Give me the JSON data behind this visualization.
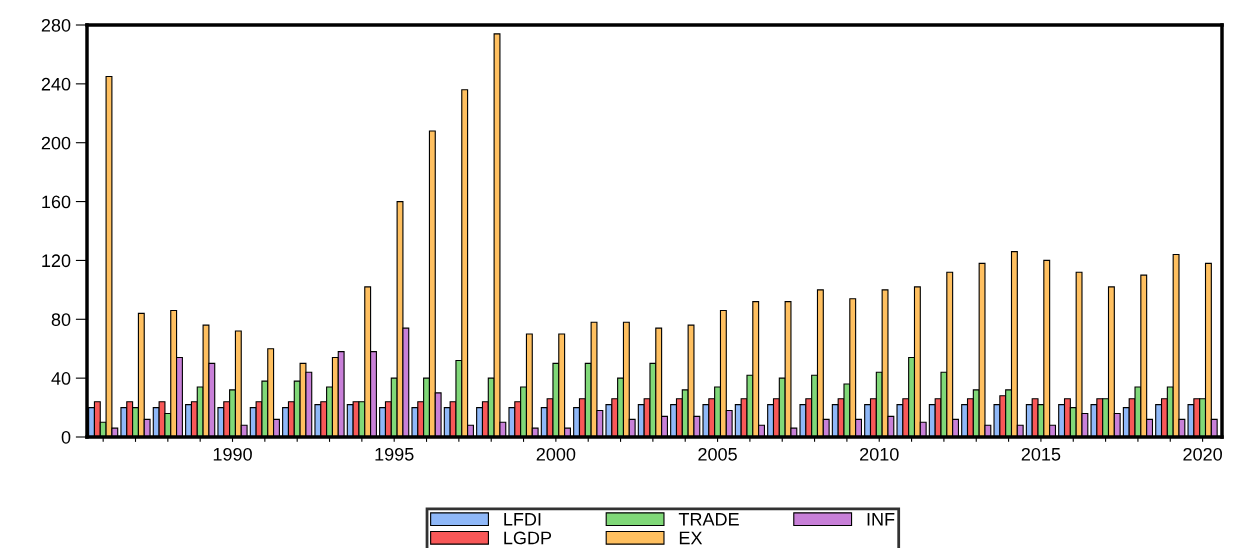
{
  "chart_data": {
    "type": "bar",
    "x": [
      1986,
      1987,
      1988,
      1989,
      1990,
      1991,
      1992,
      1993,
      1994,
      1995,
      1996,
      1997,
      1998,
      1999,
      2000,
      2001,
      2002,
      2003,
      2004,
      2005,
      2006,
      2007,
      2008,
      2009,
      2010,
      2011,
      2012,
      2013,
      2014,
      2015,
      2016,
      2017,
      2018,
      2019,
      2020
    ],
    "series": [
      {
        "name": "LFDI",
        "color": "#8fb8f8",
        "values": [
          20,
          20,
          20,
          22,
          20,
          20,
          20,
          22,
          22,
          20,
          20,
          20,
          20,
          20,
          20,
          20,
          22,
          22,
          22,
          22,
          22,
          22,
          22,
          22,
          22,
          22,
          22,
          22,
          22,
          22,
          22,
          22,
          20,
          22,
          22
        ]
      },
      {
        "name": "LGDP",
        "color": "#f85858",
        "values": [
          24,
          24,
          24,
          24,
          24,
          24,
          24,
          24,
          24,
          24,
          24,
          24,
          24,
          24,
          26,
          26,
          26,
          26,
          26,
          26,
          26,
          26,
          26,
          26,
          26,
          26,
          26,
          26,
          28,
          26,
          26,
          26,
          26,
          26,
          26
        ]
      },
      {
        "name": "TRADE",
        "color": "#80d878",
        "values": [
          10,
          20,
          16,
          34,
          32,
          38,
          38,
          34,
          24,
          40,
          40,
          52,
          40,
          34,
          50,
          50,
          40,
          50,
          32,
          34,
          42,
          40,
          42,
          36,
          44,
          54,
          44,
          32,
          32,
          22,
          20,
          26,
          34,
          34,
          26
        ]
      },
      {
        "name": "EX",
        "color": "#ffc060",
        "values": [
          245,
          84,
          86,
          76,
          72,
          60,
          50,
          54,
          102,
          160,
          208,
          236,
          274,
          70,
          70,
          78,
          78,
          74,
          76,
          86,
          92,
          92,
          100,
          94,
          100,
          102,
          112,
          118,
          126,
          120,
          112,
          102,
          110,
          124,
          118
        ]
      },
      {
        "name": "INF",
        "color": "#c880d8",
        "values": [
          6,
          12,
          54,
          50,
          8,
          12,
          44,
          58,
          58,
          74,
          30,
          8,
          10,
          6,
          6,
          18,
          12,
          14,
          14,
          18,
          8,
          6,
          12,
          12,
          14,
          10,
          12,
          8,
          8,
          8,
          16,
          16,
          12,
          12,
          12
        ]
      }
    ],
    "xlim": [
      1985.5,
      2020.6
    ],
    "xticks": [
      {
        "value": 1986,
        "label": null
      },
      {
        "value": 1987,
        "label": null
      },
      {
        "value": 1988,
        "label": null
      },
      {
        "value": 1989,
        "label": null
      },
      1990,
      {
        "value": 1991,
        "label": null
      },
      {
        "value": 1992,
        "label": null
      },
      {
        "value": 1993,
        "label": null
      },
      {
        "value": 1994,
        "label": null
      },
      1995,
      {
        "value": 1996,
        "label": null
      },
      {
        "value": 1997,
        "label": null
      },
      {
        "value": 1998,
        "label": null
      },
      {
        "value": 1999,
        "label": null
      },
      2000,
      {
        "value": 2001,
        "label": null
      },
      {
        "value": 2002,
        "label": null
      },
      {
        "value": 2003,
        "label": null
      },
      {
        "value": 2004,
        "label": null
      },
      2005,
      {
        "value": 2006,
        "label": null
      },
      {
        "value": 2007,
        "label": null
      },
      {
        "value": 2008,
        "label": null
      },
      {
        "value": 2009,
        "label": null
      },
      2010,
      {
        "value": 2011,
        "label": null
      },
      {
        "value": 2012,
        "label": null
      },
      {
        "value": 2013,
        "label": null
      },
      {
        "value": 2014,
        "label": null
      },
      2015,
      {
        "value": 2016,
        "label": null
      },
      {
        "value": 2017,
        "label": null
      },
      {
        "value": 2018,
        "label": null
      },
      {
        "value": 2019,
        "label": null
      },
      2020
    ],
    "ylim": [
      0,
      280
    ],
    "yticks": [
      0,
      40,
      80,
      120,
      160,
      200,
      240,
      280
    ],
    "grid": false,
    "legend": "bottom"
  }
}
